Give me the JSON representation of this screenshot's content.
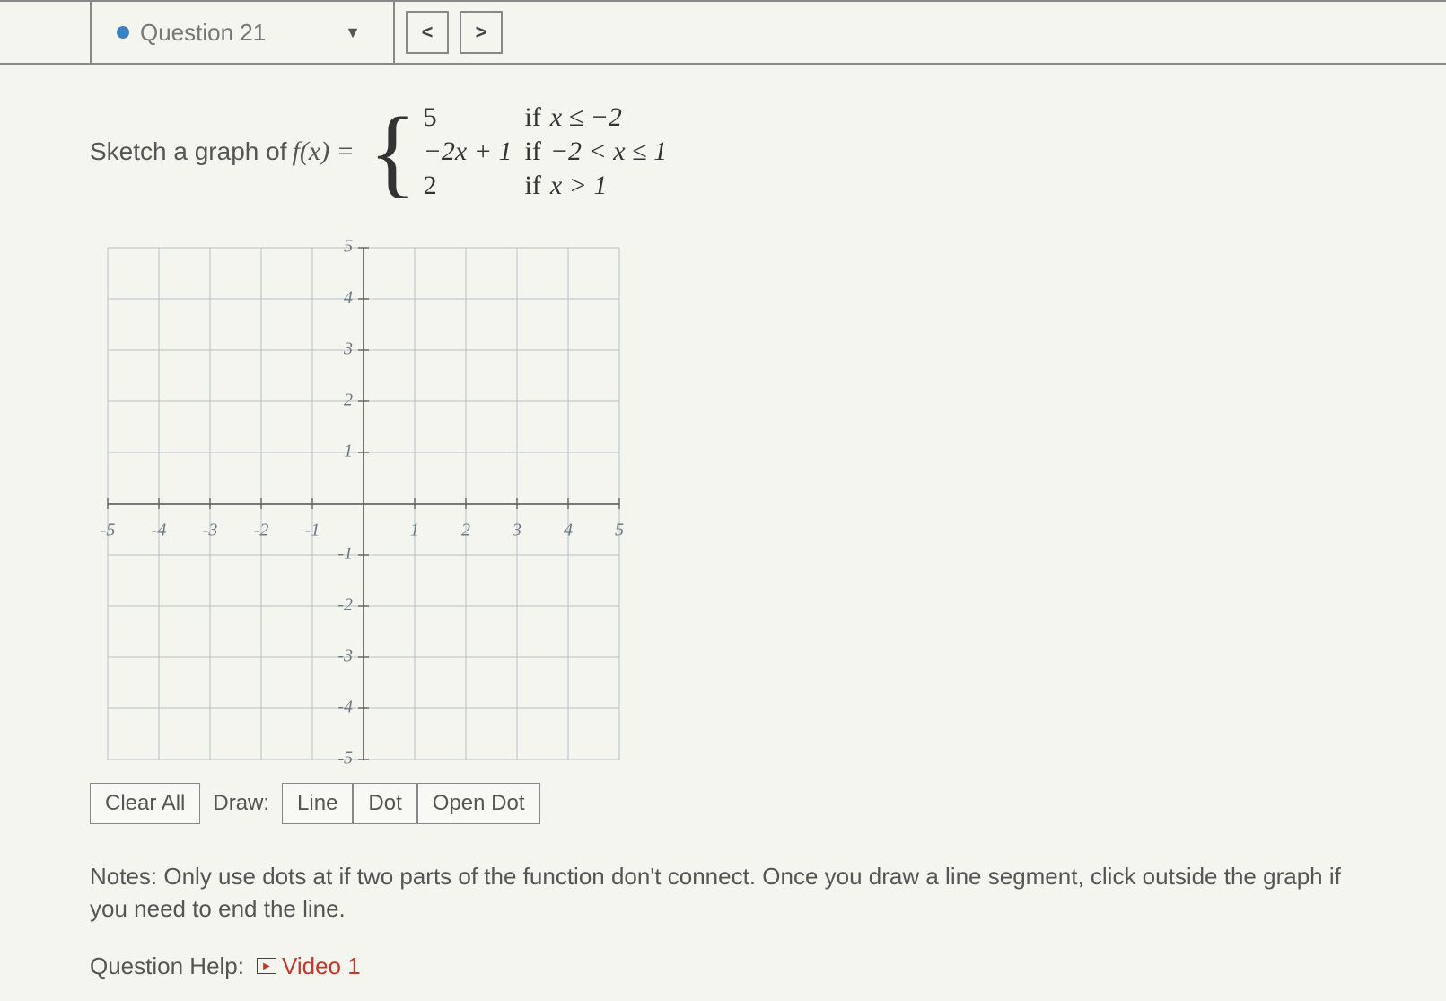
{
  "header": {
    "question_label": "Question 21",
    "prev_symbol": "<",
    "next_symbol": ">",
    "caret": "▼"
  },
  "prompt": {
    "lead": "Sketch a graph of ",
    "fx": "f(x) =",
    "cases": [
      {
        "expr": "5",
        "cond": "x ≤ −2"
      },
      {
        "expr": "−2x + 1",
        "cond": "−2 < x ≤ 1"
      },
      {
        "expr": "2",
        "cond": "x > 1"
      }
    ],
    "if_word": "if"
  },
  "graph": {
    "xmin": -5,
    "xmax": 5,
    "ymin": -5,
    "ymax": 5,
    "tick_step": 1,
    "grid_color": "#b8c0c4",
    "axis_color": "#666",
    "label_color": "#6b7a85",
    "label_font": "italic 20px 'Times New Roman', serif",
    "bg_color": "#f5f5f0"
  },
  "tools": {
    "clear": "Clear All",
    "draw_label": "Draw:",
    "line": "Line",
    "dot": "Dot",
    "open_dot": "Open Dot"
  },
  "notes": "Notes: Only use dots at if two parts of the function don't connect. Once you draw a line segment, click outside the graph if you need to end the line.",
  "help": {
    "label": "Question Help:",
    "video1": "Video 1"
  }
}
